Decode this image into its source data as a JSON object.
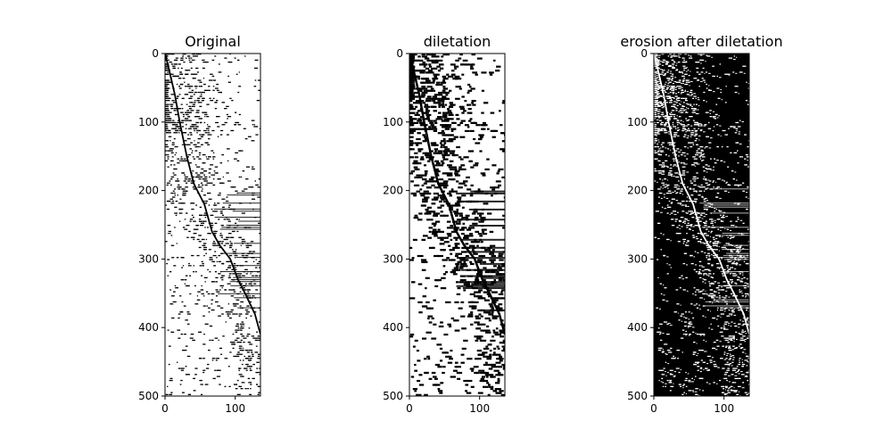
{
  "chart_data": [
    {
      "type": "heatmap",
      "title": "Original",
      "xlim": [
        0,
        136
      ],
      "ylim": [
        500,
        0
      ],
      "xticks": [
        0,
        100
      ],
      "yticks": [
        0,
        100,
        200,
        300,
        400,
        500
      ],
      "background_color": "#ffffff",
      "foreground_color": "#000000",
      "curve_color": "#000000",
      "curve": [
        [
          0,
          0
        ],
        [
          5,
          20
        ],
        [
          14,
          60
        ],
        [
          21,
          100
        ],
        [
          31,
          150
        ],
        [
          41,
          190
        ],
        [
          56,
          220
        ],
        [
          67,
          260
        ],
        [
          78,
          280
        ],
        [
          93,
          300
        ],
        [
          104,
          330
        ],
        [
          114,
          350
        ],
        [
          128,
          380
        ],
        [
          136,
          410
        ]
      ]
    },
    {
      "type": "heatmap",
      "title": "diletation",
      "xlim": [
        0,
        136
      ],
      "ylim": [
        500,
        0
      ],
      "xticks": [
        0,
        100
      ],
      "yticks": [
        0,
        100,
        200,
        300,
        400,
        500
      ],
      "background_color": "#ffffff",
      "foreground_color": "#000000",
      "curve_color": "#000000",
      "curve": [
        [
          0,
          0
        ],
        [
          5,
          20
        ],
        [
          14,
          60
        ],
        [
          21,
          100
        ],
        [
          31,
          150
        ],
        [
          41,
          190
        ],
        [
          56,
          220
        ],
        [
          67,
          260
        ],
        [
          78,
          280
        ],
        [
          93,
          300
        ],
        [
          104,
          330
        ],
        [
          114,
          350
        ],
        [
          128,
          380
        ],
        [
          136,
          410
        ]
      ]
    },
    {
      "type": "heatmap",
      "title": "erosion after diletation",
      "xlim": [
        0,
        136
      ],
      "ylim": [
        500,
        0
      ],
      "xticks": [
        0,
        100
      ],
      "yticks": [
        0,
        100,
        200,
        300,
        400,
        500
      ],
      "background_color": "#000000",
      "foreground_color": "#ffffff",
      "curve_color": "#ffffff",
      "curve": [
        [
          0,
          0
        ],
        [
          5,
          20
        ],
        [
          14,
          60
        ],
        [
          21,
          100
        ],
        [
          31,
          150
        ],
        [
          41,
          190
        ],
        [
          56,
          220
        ],
        [
          67,
          260
        ],
        [
          78,
          280
        ],
        [
          93,
          300
        ],
        [
          104,
          330
        ],
        [
          114,
          350
        ],
        [
          128,
          380
        ],
        [
          136,
          410
        ]
      ]
    }
  ]
}
